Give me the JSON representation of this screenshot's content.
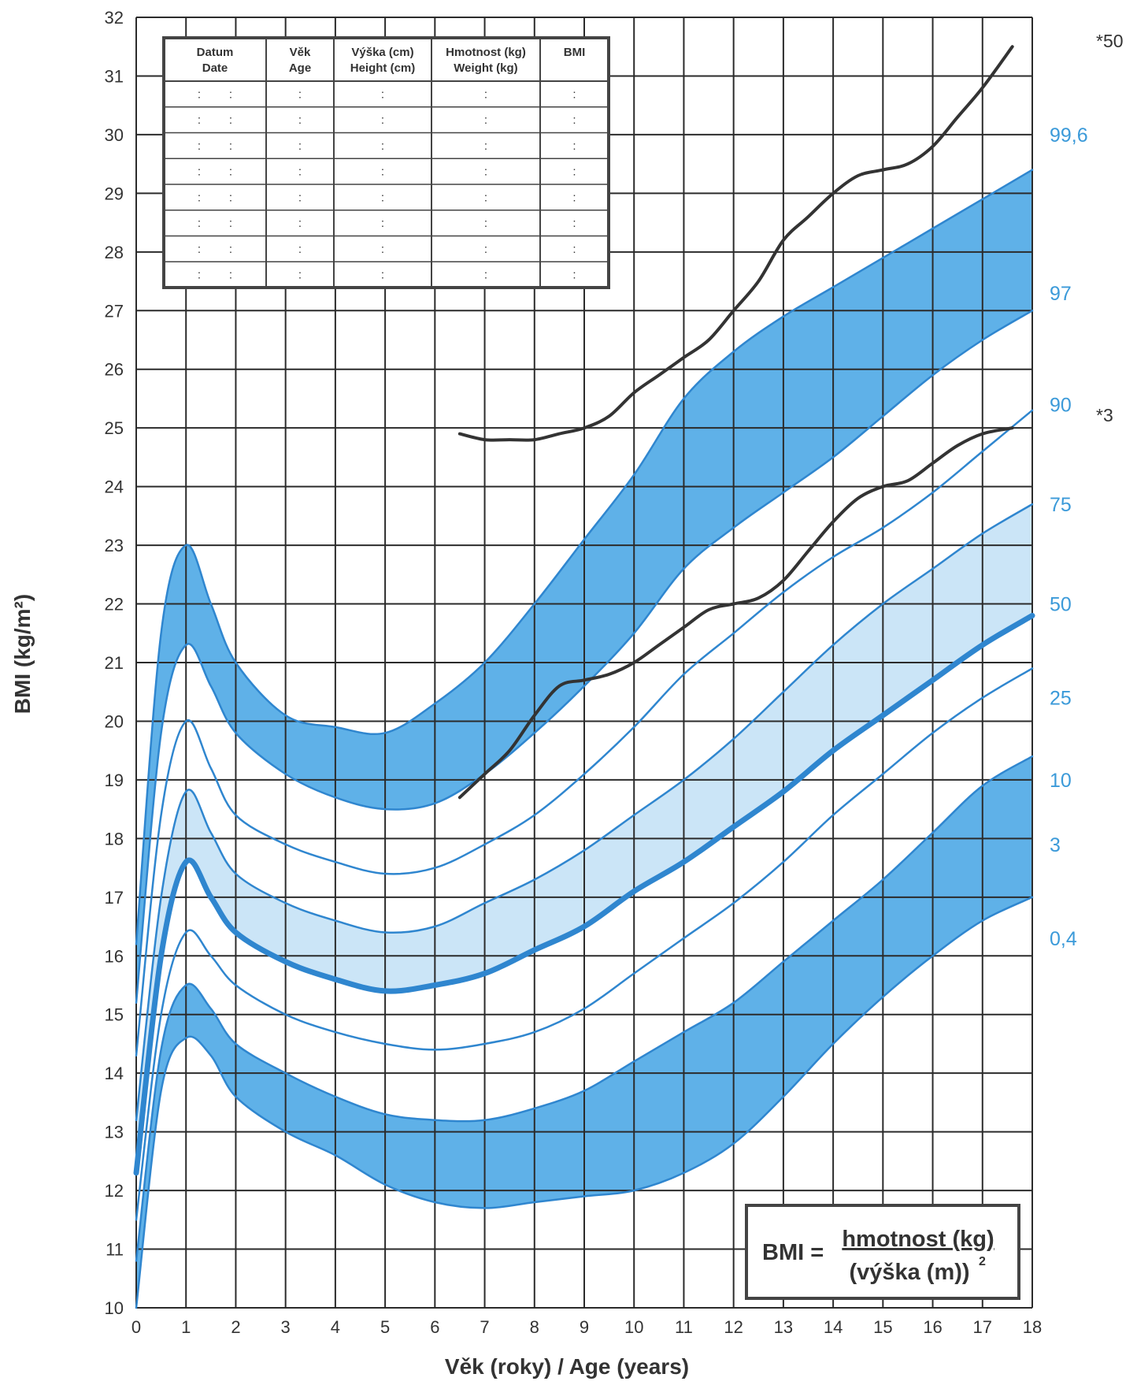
{
  "chart_data": {
    "type": "line",
    "title": "",
    "xlabel": "Věk (roky) / Age (years)",
    "ylabel": "BMI (kg/m²)",
    "xlim": [
      0,
      18
    ],
    "ylim": [
      10,
      32
    ],
    "x_ticks": [
      0,
      1,
      2,
      3,
      4,
      5,
      6,
      7,
      8,
      9,
      10,
      11,
      12,
      13,
      14,
      15,
      16,
      17,
      18
    ],
    "y_ticks": [
      10,
      11,
      12,
      13,
      14,
      15,
      16,
      17,
      18,
      19,
      20,
      21,
      22,
      23,
      24,
      25,
      26,
      27,
      28,
      29,
      30,
      31,
      32
    ],
    "grid": true,
    "colors": {
      "percentile": "#2f86cf",
      "band_dark": "#4ea8e6",
      "band_light": "#b9dcf4",
      "patient": "#333333",
      "label_blue": "#3b9ad9"
    },
    "x": [
      0,
      0.5,
      1,
      1.5,
      2,
      3,
      4,
      5,
      6,
      7,
      8,
      9,
      10,
      11,
      12,
      13,
      14,
      15,
      16,
      17,
      18
    ],
    "series": [
      {
        "name": "0,4",
        "values": [
          10.0,
          13.7,
          14.6,
          14.3,
          13.6,
          13.0,
          12.6,
          12.1,
          11.8,
          11.7,
          11.8,
          11.9,
          12.0,
          12.3,
          12.8,
          13.6,
          14.5,
          15.3,
          16.0,
          16.6,
          17.0
        ]
      },
      {
        "name": "3",
        "values": [
          10.8,
          14.4,
          15.5,
          15.1,
          14.5,
          14.0,
          13.6,
          13.3,
          13.2,
          13.2,
          13.4,
          13.7,
          14.2,
          14.7,
          15.2,
          15.9,
          16.6,
          17.3,
          18.1,
          18.9,
          19.4
        ]
      },
      {
        "name": "10",
        "values": [
          11.5,
          15.0,
          16.4,
          16.0,
          15.5,
          15.0,
          14.7,
          14.5,
          14.4,
          14.5,
          14.7,
          15.1,
          15.7,
          16.3,
          16.9,
          17.6,
          18.4,
          19.1,
          19.8,
          20.4,
          20.9
        ]
      },
      {
        "name": "25",
        "values": [
          12.3,
          16.0,
          17.6,
          17.0,
          16.4,
          15.9,
          15.6,
          15.4,
          15.5,
          15.7,
          16.1,
          16.5,
          17.1,
          17.6,
          18.2,
          18.8,
          19.5,
          20.1,
          20.7,
          21.3,
          21.8
        ]
      },
      {
        "name": "50",
        "values": [
          13.2,
          17.0,
          18.8,
          18.1,
          17.4,
          16.9,
          16.6,
          16.4,
          16.5,
          16.9,
          17.3,
          17.8,
          18.4,
          19.0,
          19.7,
          20.5,
          21.3,
          22.0,
          22.6,
          23.2,
          23.7
        ]
      },
      {
        "name": "75",
        "values": [
          14.3,
          18.4,
          20.0,
          19.2,
          18.4,
          17.9,
          17.6,
          17.4,
          17.5,
          17.9,
          18.4,
          19.1,
          19.9,
          20.8,
          21.5,
          22.2,
          22.8,
          23.3,
          23.9,
          24.6,
          25.3
        ]
      },
      {
        "name": "90",
        "values": [
          15.2,
          19.8,
          21.3,
          20.6,
          19.8,
          19.1,
          18.7,
          18.5,
          18.6,
          19.1,
          19.8,
          20.6,
          21.5,
          22.6,
          23.3,
          23.9,
          24.5,
          25.2,
          25.9,
          26.5,
          27.0
        ]
      },
      {
        "name": "97",
        "values": [
          16.2,
          21.5,
          23.0,
          22.0,
          21.0,
          20.1,
          19.9,
          19.8,
          20.3,
          21.0,
          22.0,
          23.1,
          24.2,
          25.5,
          26.3,
          26.9,
          27.4,
          27.9,
          28.4,
          28.9,
          29.4
        ]
      }
    ],
    "patient_curves": [
      {
        "label": "*3",
        "x": [
          6.5,
          7.0,
          7.5,
          8.0,
          8.5,
          9.0,
          9.5,
          10.0,
          10.5,
          11.0,
          11.5,
          12.0,
          12.5,
          13.0,
          13.5,
          14.0,
          14.5,
          15.0,
          15.5,
          16.0,
          16.5,
          17.0,
          17.6
        ],
        "values": [
          18.7,
          19.1,
          19.5,
          20.1,
          20.6,
          20.7,
          20.8,
          21.0,
          21.3,
          21.6,
          21.9,
          22.0,
          22.1,
          22.4,
          22.9,
          23.4,
          23.8,
          24.0,
          24.1,
          24.4,
          24.7,
          24.9,
          25.0
        ]
      },
      {
        "label": "*50",
        "x": [
          6.5,
          7.0,
          7.5,
          8.0,
          8.5,
          9.0,
          9.5,
          10.0,
          10.5,
          11.0,
          11.5,
          12.0,
          12.5,
          13.0,
          13.5,
          14.0,
          14.5,
          15.0,
          15.5,
          16.0,
          16.5,
          17.0,
          17.6
        ],
        "values": [
          24.9,
          24.8,
          24.8,
          24.8,
          24.9,
          25.0,
          25.2,
          25.6,
          25.9,
          26.2,
          26.5,
          27.0,
          27.5,
          28.2,
          28.6,
          29.0,
          29.3,
          29.4,
          29.5,
          29.8,
          30.3,
          30.8,
          31.5
        ]
      }
    ],
    "percentile_labels": [
      {
        "text": "99,6",
        "y": 30.0
      },
      {
        "text": "97",
        "y": 27.3
      },
      {
        "text": "90",
        "y": 25.4
      },
      {
        "text": "75",
        "y": 23.7
      },
      {
        "text": "50",
        "y": 22.0
      },
      {
        "text": "25",
        "y": 20.4
      },
      {
        "text": "10",
        "y": 19.0
      },
      {
        "text": "3",
        "y": 17.9
      },
      {
        "text": "0,4",
        "y": 16.3
      }
    ],
    "side_labels": {
      "top": "*50",
      "mid": "*3"
    }
  },
  "table": {
    "headers": [
      [
        "Datum",
        "Date"
      ],
      [
        "Věk",
        "Age"
      ],
      [
        "Výška (cm)",
        "Height (cm)"
      ],
      [
        "Hmotnost (kg)",
        "Weight (kg)"
      ],
      [
        "BMI",
        ""
      ]
    ],
    "row_count": 8,
    "placeholder": ":"
  },
  "formula": {
    "lhs": "BMI =",
    "numerator": "hmotnost (kg)",
    "denominator": "(výška (m))",
    "exponent": "2"
  }
}
